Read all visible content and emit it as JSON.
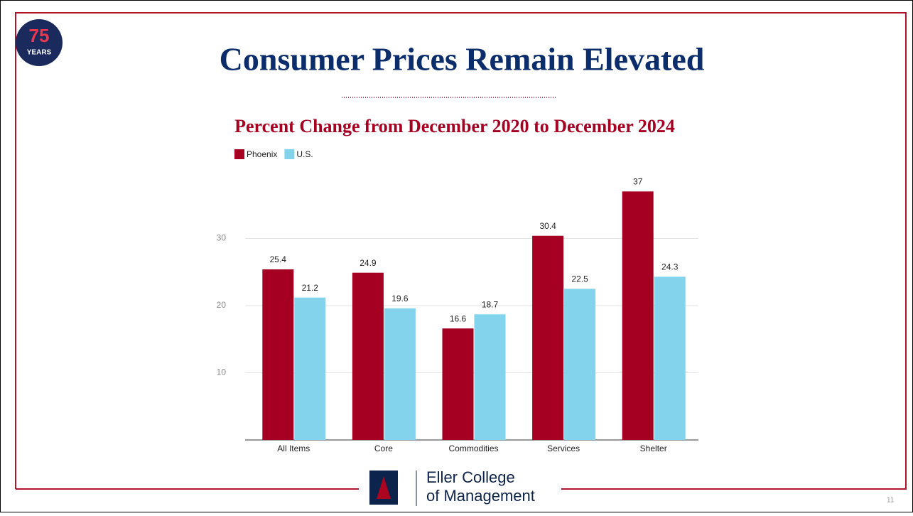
{
  "slide": {
    "badge_number": "75",
    "badge_text": "YEARS",
    "logo_line1": "Eller College",
    "logo_line2": "of Management",
    "page_number": "11"
  },
  "chart_data": {
    "type": "bar",
    "title": "Consumer Prices Remain Elevated",
    "subtitle": "Percent Change from December 2020 to December 2024",
    "categories": [
      "All Items",
      "Core",
      "Commodities",
      "Services",
      "Shelter"
    ],
    "series": [
      {
        "name": "Phoenix",
        "color": "#a50021",
        "values": [
          25.4,
          24.9,
          16.6,
          30.4,
          37
        ]
      },
      {
        "name": "U.S.",
        "color": "#83d3ec",
        "values": [
          21.2,
          19.6,
          18.7,
          22.5,
          24.3
        ]
      }
    ],
    "ylim": [
      0,
      40
    ],
    "yticks": [
      10,
      20,
      30
    ],
    "grid": true,
    "legend": "top-left"
  }
}
